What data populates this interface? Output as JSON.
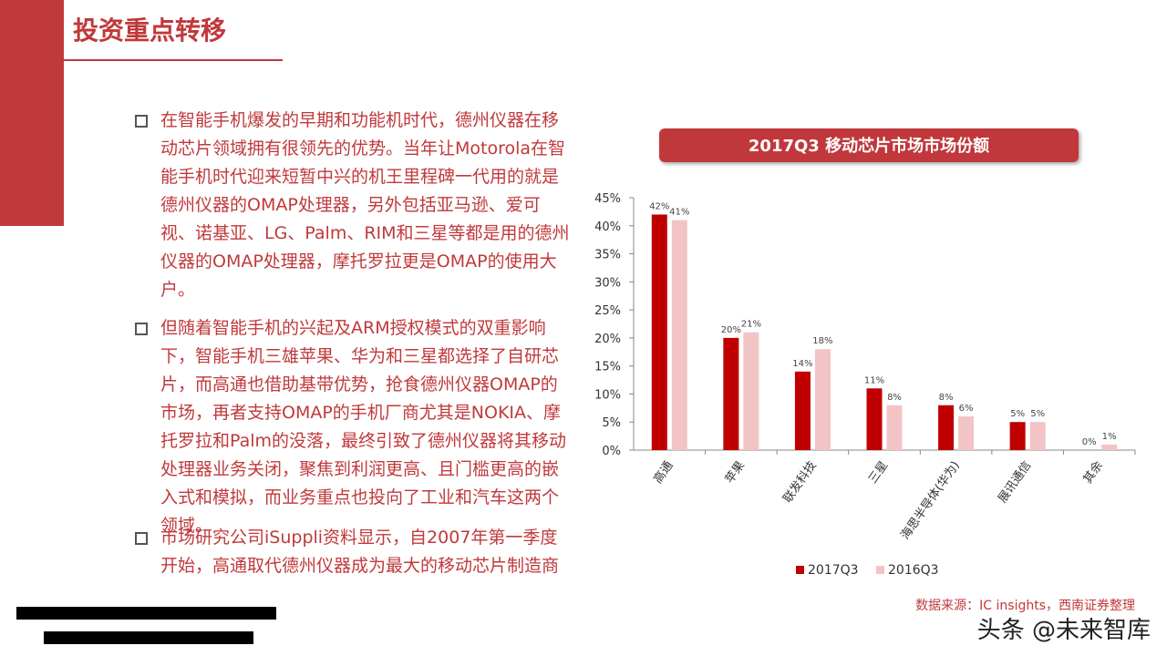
{
  "slide": {
    "title": "投资重点转移",
    "bullets": [
      "在智能手机爆发的早期和功能机时代，德州仪器在移动芯片领域拥有很领先的优势。当年让Motorola在智能手机时代迎来短暂中兴的机王里程碑一代用的就是德州仪器的OMAP处理器，另外包括亚马逊、爱可视、诺基亚、LG、Palm、RIM和三星等都是用的德州仪器的OMAP处理器，摩托罗拉更是OMAP的使用大户。",
      "但随着智能手机的兴起及ARM授权模式的双重影响下，智能手机三雄苹果、华为和三星都选择了自研芯片，而高通也借助基带优势，抢食德州仪器OMAP的市场，再者支持OMAP的手机厂商尤其是NOKIA、摩托罗拉和Palm的没落，最终引致了德州仪器将其移动处理器业务关闭，聚焦到利润更高、且门槛更高的嵌入式和模拟，而业务重点也投向了工业和汽车这两个领域。",
      "市场研究公司iSuppli资料显示，自2007年第一季度开始，高通取代德州仪器成为最大的移动芯片制造商"
    ],
    "source": "数据来源：IC insights，西南证券整理",
    "watermark": "头条 @未来智库"
  },
  "chart_data": {
    "type": "bar",
    "title": "2017Q3 移动芯片市场市场份额",
    "categories": [
      "高通",
      "苹果",
      "联发科技",
      "三星",
      "海思半导体(华为)",
      "展讯通信",
      "其余"
    ],
    "series": [
      {
        "name": "2017Q3",
        "color": "#c00000",
        "values": [
          42,
          20,
          14,
          11,
          8,
          5,
          0
        ],
        "value_labels": [
          "42%",
          "20%",
          "14%",
          "11%",
          "8%",
          "5%",
          "0%"
        ]
      },
      {
        "name": "2016Q3",
        "color": "#f2c4c6",
        "values": [
          41,
          21,
          18,
          8,
          6,
          5,
          1
        ],
        "value_labels": [
          "41%",
          "21%",
          "18%",
          "8%",
          "6%",
          "5%",
          "1%"
        ]
      }
    ],
    "ylim": [
      0,
      45
    ],
    "yticks": [
      {
        "value": 0,
        "label": "0%"
      },
      {
        "value": 5,
        "label": "5%"
      },
      {
        "value": 10,
        "label": "10%"
      },
      {
        "value": 15,
        "label": "15%"
      },
      {
        "value": 20,
        "label": "20%"
      },
      {
        "value": 25,
        "label": "25%"
      },
      {
        "value": 30,
        "label": "30%"
      },
      {
        "value": 35,
        "label": "35%"
      },
      {
        "value": 40,
        "label": "40%"
      },
      {
        "value": 45,
        "label": "45%"
      }
    ],
    "legend": "bottom"
  }
}
